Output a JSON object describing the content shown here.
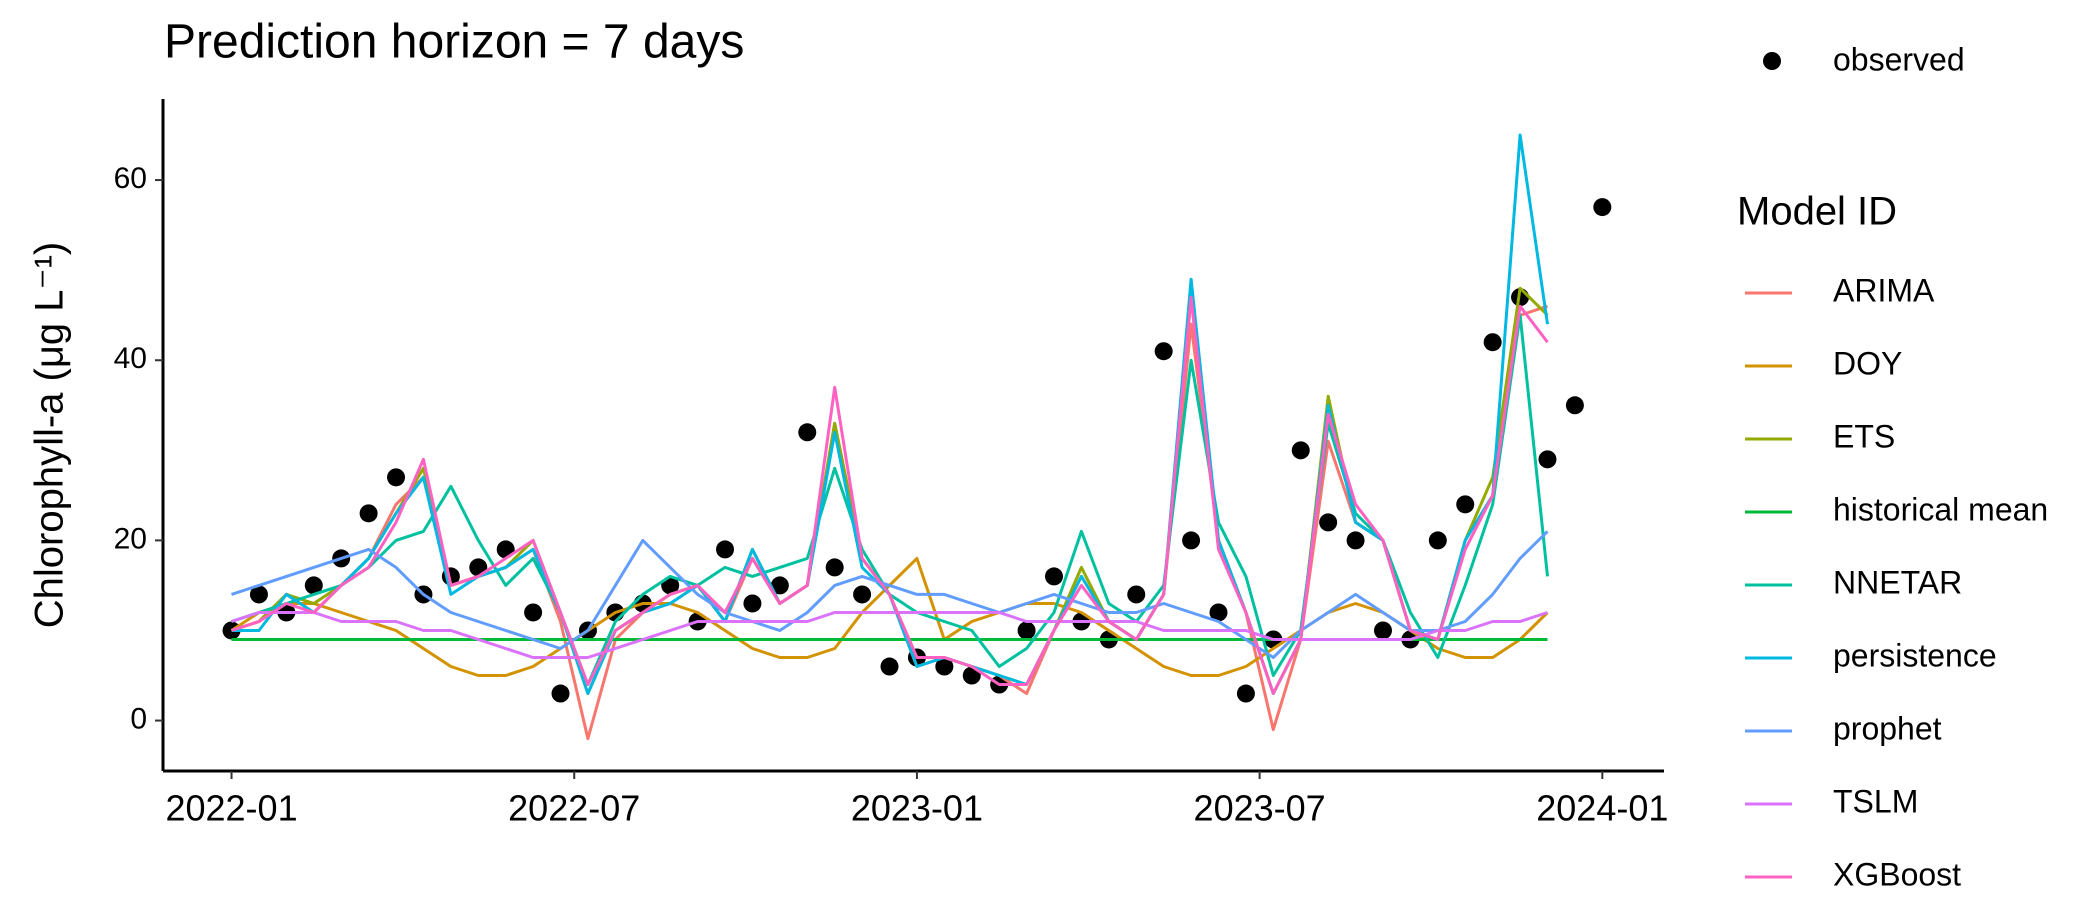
{
  "chart_data": {
    "type": "line",
    "title": "Prediction horizon = 7 days",
    "y_label": "Chlorophyll-a (μg L⁻¹)",
    "legend_title": "Model ID",
    "x": [
      2022.0,
      2022.04,
      2022.08,
      2022.12,
      2022.16,
      2022.2,
      2022.24,
      2022.28,
      2022.32,
      2022.36,
      2022.4,
      2022.44,
      2022.48,
      2022.52,
      2022.56,
      2022.6,
      2022.64,
      2022.68,
      2022.72,
      2022.76,
      2022.8,
      2022.84,
      2022.88,
      2022.92,
      2022.96,
      2023.0,
      2023.04,
      2023.08,
      2023.12,
      2023.16,
      2023.2,
      2023.24,
      2023.28,
      2023.32,
      2023.36,
      2023.4,
      2023.44,
      2023.48,
      2023.52,
      2023.56,
      2023.6,
      2023.64,
      2023.68,
      2023.72,
      2023.76,
      2023.8,
      2023.84,
      2023.88,
      2023.92,
      2023.96,
      2024.0
    ],
    "xlim": [
      2021.9,
      2024.09
    ],
    "xticks": [
      {
        "value": 2022.0,
        "label": "2022-01"
      },
      {
        "value": 2022.5,
        "label": "2022-07"
      },
      {
        "value": 2023.0,
        "label": "2023-01"
      },
      {
        "value": 2023.5,
        "label": "2023-07"
      },
      {
        "value": 2024.0,
        "label": "2024-01"
      }
    ],
    "ylim": [
      -5.6,
      69
    ],
    "yticks": [
      0,
      20,
      40,
      60
    ],
    "series": [
      {
        "name": "observed",
        "color": "#000000",
        "style": "points",
        "values": [
          10,
          14,
          12,
          15,
          18,
          23,
          27,
          14,
          16,
          17,
          19,
          12,
          3,
          10,
          12,
          13,
          15,
          11,
          19,
          13,
          15,
          32,
          17,
          14,
          6,
          7,
          6,
          5,
          4,
          10,
          16,
          11,
          9,
          14,
          41,
          20,
          12,
          3,
          9,
          30,
          22,
          20,
          10,
          9,
          20,
          24,
          42,
          47,
          29,
          35,
          57
        ]
      },
      {
        "name": "ARIMA",
        "color": "#F8766D",
        "values": [
          10,
          11,
          14,
          12,
          15,
          18,
          24,
          27,
          15,
          16,
          17,
          19,
          11,
          -2,
          9,
          12,
          13,
          15,
          11,
          18,
          13,
          15,
          33,
          18,
          14,
          6,
          7,
          6,
          5,
          3,
          10,
          16,
          11,
          9,
          14,
          44,
          20,
          12,
          -1,
          9,
          31,
          22,
          20,
          10,
          9,
          20,
          25,
          45,
          46,
          null,
          null
        ]
      },
      {
        "name": "DOY",
        "color": "#D39200",
        "values": [
          10,
          12,
          13,
          13,
          12,
          11,
          10,
          8,
          6,
          5,
          5,
          6,
          8,
          10,
          12,
          13,
          13,
          12,
          10,
          8,
          7,
          7,
          8,
          12,
          15,
          18,
          9,
          11,
          12,
          13,
          13,
          12,
          10,
          8,
          6,
          5,
          5,
          6,
          8,
          10,
          12,
          13,
          12,
          10,
          8,
          7,
          7,
          9,
          12,
          null,
          null
        ]
      },
      {
        "name": "ETS",
        "color": "#93AA00",
        "values": [
          10,
          11,
          14,
          13,
          15,
          18,
          23,
          28,
          15,
          16,
          17,
          20,
          12,
          3,
          10,
          12,
          14,
          15,
          11,
          19,
          13,
          15,
          33,
          18,
          14,
          7,
          7,
          6,
          5,
          4,
          10,
          17,
          11,
          9,
          14,
          47,
          20,
          12,
          3,
          9,
          36,
          22,
          20,
          10,
          9,
          20,
          27,
          48,
          45,
          null,
          null
        ]
      },
      {
        "name": "historical mean",
        "color": "#00BA38",
        "values": [
          9,
          9,
          9,
          9,
          9,
          9,
          9,
          9,
          9,
          9,
          9,
          9,
          9,
          9,
          9,
          9,
          9,
          9,
          9,
          9,
          9,
          9,
          9,
          9,
          9,
          9,
          9,
          9,
          9,
          9,
          9,
          9,
          9,
          9,
          9,
          9,
          9,
          9,
          9,
          9,
          9,
          9,
          9,
          9,
          9,
          9,
          9,
          9,
          9,
          null,
          null
        ]
      },
      {
        "name": "NNETAR",
        "color": "#00C19F",
        "values": [
          11,
          12,
          13,
          14,
          15,
          17,
          20,
          21,
          26,
          20,
          15,
          18,
          12,
          4,
          11,
          14,
          16,
          15,
          17,
          16,
          17,
          18,
          28,
          19,
          14,
          12,
          11,
          10,
          6,
          8,
          12,
          21,
          13,
          11,
          15,
          40,
          22,
          16,
          5,
          10,
          33,
          23,
          20,
          12,
          7,
          15,
          24,
          45,
          16,
          null,
          null
        ]
      },
      {
        "name": "persistence",
        "color": "#00B9E3",
        "values": [
          10,
          10,
          14,
          12,
          15,
          18,
          23,
          27,
          14,
          16,
          17,
          19,
          12,
          3,
          10,
          12,
          13,
          15,
          11,
          19,
          13,
          15,
          32,
          17,
          14,
          6,
          7,
          6,
          5,
          4,
          10,
          16,
          11,
          9,
          14,
          49,
          20,
          12,
          3,
          9,
          35,
          22,
          20,
          10,
          9,
          20,
          25,
          65,
          44,
          null,
          null
        ]
      },
      {
        "name": "prophet",
        "color": "#619CFF",
        "values": [
          14,
          15,
          16,
          17,
          18,
          19,
          17,
          14,
          12,
          11,
          10,
          9,
          8,
          10,
          15,
          20,
          17,
          14,
          12,
          11,
          10,
          12,
          15,
          16,
          15,
          14,
          14,
          13,
          12,
          13,
          14,
          13,
          12,
          12,
          13,
          12,
          11,
          9,
          7,
          10,
          12,
          14,
          12,
          10,
          10,
          11,
          14,
          18,
          21,
          null,
          null
        ]
      },
      {
        "name": "TSLM",
        "color": "#DB72FB",
        "values": [
          11,
          12,
          12,
          12,
          11,
          11,
          11,
          10,
          10,
          9,
          8,
          7,
          7,
          7,
          8,
          9,
          10,
          11,
          11,
          11,
          11,
          11,
          12,
          12,
          12,
          12,
          12,
          12,
          12,
          11,
          11,
          11,
          11,
          11,
          10,
          10,
          10,
          10,
          9,
          9,
          9,
          9,
          9,
          9,
          10,
          10,
          11,
          11,
          12,
          null,
          null
        ]
      },
      {
        "name": "XGBoost",
        "color": "#FF61C3",
        "values": [
          10,
          11,
          13,
          12,
          15,
          17,
          22,
          29,
          15,
          16,
          18,
          20,
          12,
          4,
          10,
          12,
          14,
          15,
          12,
          18,
          13,
          15,
          37,
          18,
          14,
          7,
          7,
          6,
          4,
          4,
          10,
          15,
          11,
          9,
          14,
          47,
          19,
          12,
          3,
          9,
          34,
          24,
          20,
          10,
          9,
          19,
          25,
          46,
          42,
          null,
          null
        ]
      }
    ]
  }
}
